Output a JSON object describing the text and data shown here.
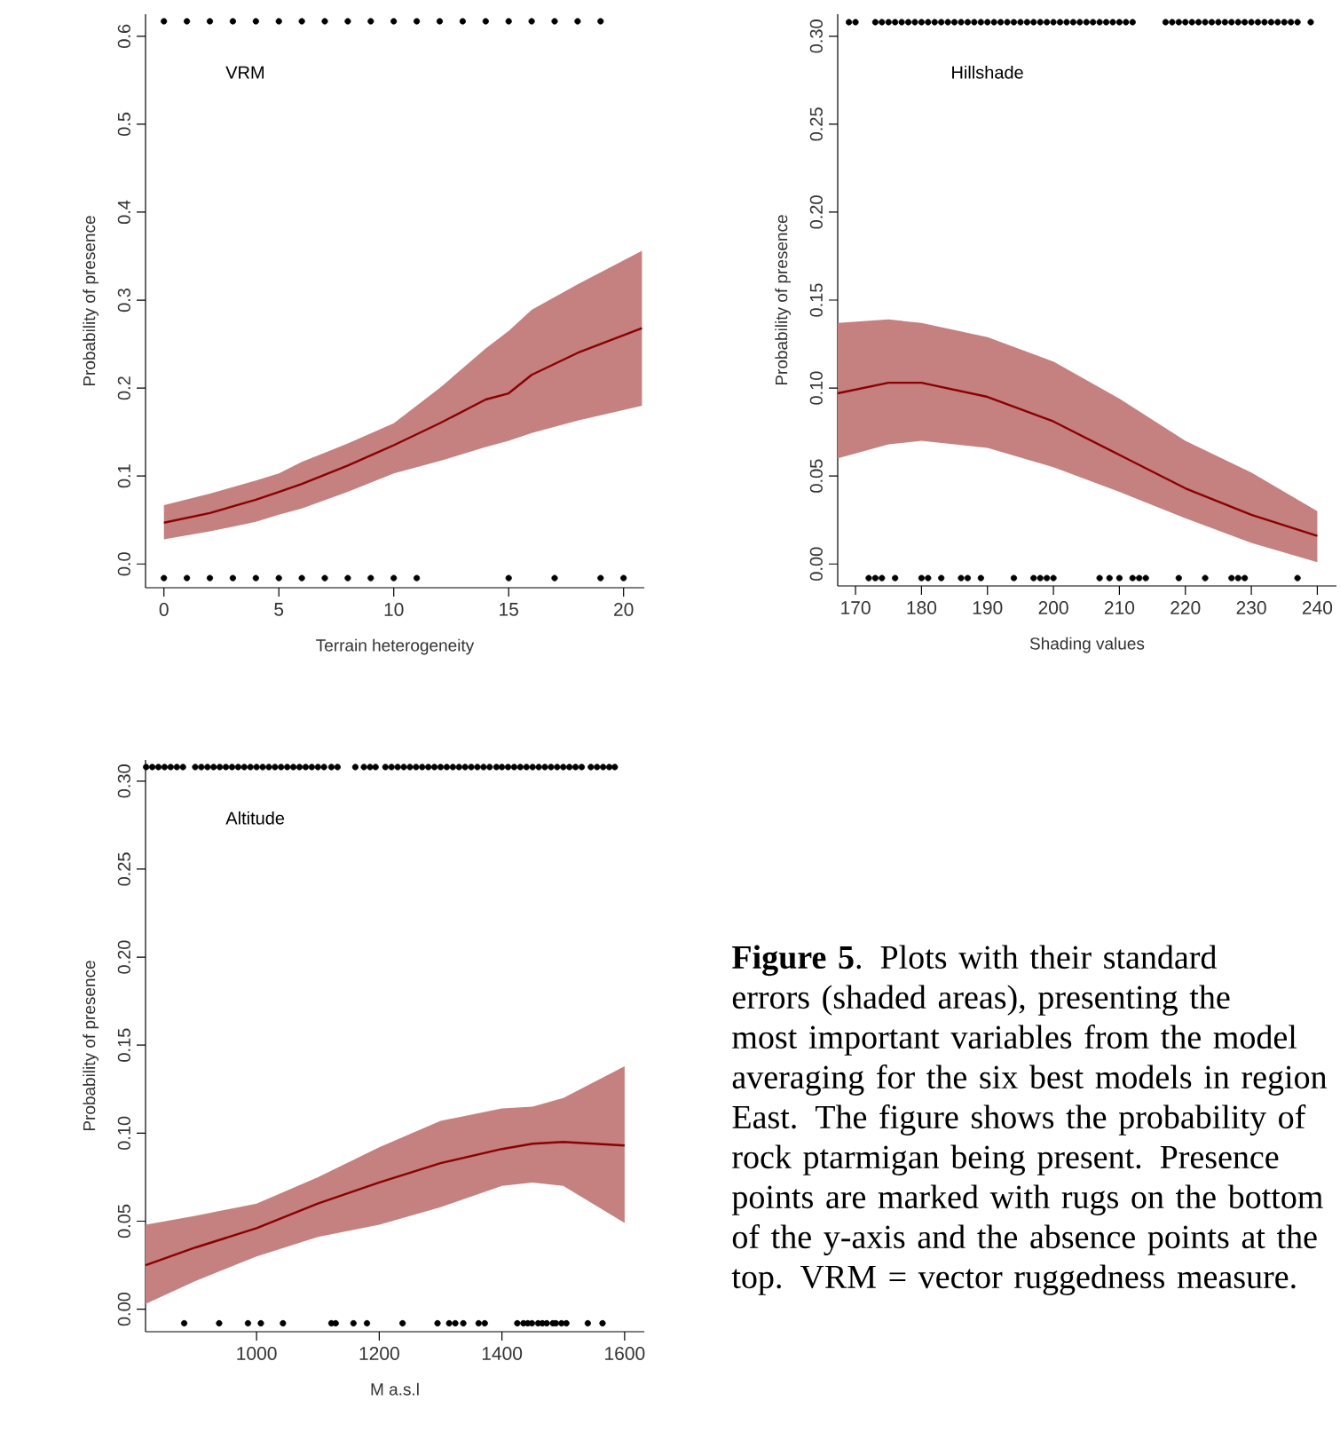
{
  "chart_data": [
    {
      "type": "line",
      "title": "VRM",
      "xlabel": "Terrain heterogeneity",
      "ylabel": "Probability of presence",
      "xlim": [
        -0.8,
        20.9
      ],
      "ylim": [
        -0.027,
        0.625
      ],
      "xticks": [
        0,
        5,
        10,
        15,
        20
      ],
      "yticks": [
        {
          "value": 0,
          "label": "0.0"
        },
        {
          "value": 0.1,
          "label": "0.1"
        },
        {
          "value": 0.2,
          "label": "0.2"
        },
        {
          "value": 0.3,
          "label": "0.3"
        },
        {
          "value": 0.4,
          "label": "0.4"
        },
        {
          "value": 0.5,
          "label": "0.5"
        },
        {
          "value": 0.6,
          "label": "0.6"
        }
      ],
      "series": [
        {
          "type": "line",
          "color": "#8b0000",
          "x": [
            0,
            2,
            4,
            5,
            6,
            8,
            10,
            12,
            14,
            15,
            16,
            18,
            20.8
          ],
          "values": [
            0.047,
            0.058,
            0.073,
            0.082,
            0.091,
            0.112,
            0.135,
            0.16,
            0.187,
            0.194,
            0.215,
            0.24,
            0.268
          ],
          "lower": [
            0.028,
            0.037,
            0.048,
            0.056,
            0.063,
            0.082,
            0.103,
            0.117,
            0.133,
            0.14,
            0.149,
            0.163,
            0.18
          ],
          "upper": [
            0.067,
            0.08,
            0.095,
            0.103,
            0.116,
            0.137,
            0.16,
            0.2,
            0.245,
            0.265,
            0.289,
            0.318,
            0.356
          ]
        },
        {
          "type": "scatter",
          "color": "#000000",
          "x": [
            0,
            1,
            2,
            3,
            4,
            5,
            6,
            7,
            8,
            9,
            10,
            11,
            12,
            13,
            14,
            15,
            16,
            17,
            18,
            19
          ],
          "values": [
            0.617,
            0.617,
            0.617,
            0.617,
            0.617,
            0.617,
            0.617,
            0.617,
            0.617,
            0.617,
            0.617,
            0.617,
            0.617,
            0.617,
            0.617,
            0.617,
            0.617,
            0.617,
            0.617,
            0.617
          ]
        },
        {
          "type": "scatter",
          "color": "#000000",
          "x": [
            0,
            1,
            2,
            3,
            4,
            5,
            6,
            7,
            8,
            9,
            10,
            11,
            15,
            17,
            19,
            20
          ],
          "values": [
            -0.016,
            -0.016,
            -0.016,
            -0.016,
            -0.016,
            -0.016,
            -0.016,
            -0.016,
            -0.016,
            -0.016,
            -0.016,
            -0.016,
            -0.016,
            -0.016,
            -0.016,
            -0.016
          ]
        }
      ]
    },
    {
      "type": "line",
      "title": "Hillshade",
      "xlabel": "Shading values",
      "ylabel": "Probability of presence",
      "xlim": [
        167.3,
        242.9
      ],
      "ylim": [
        -0.0125,
        0.3125
      ],
      "xticks": [
        170,
        180,
        190,
        200,
        210,
        220,
        230,
        240
      ],
      "yticks": [
        {
          "value": 0,
          "label": "0.00"
        },
        {
          "value": 0.05,
          "label": "0.05"
        },
        {
          "value": 0.1,
          "label": "0.10"
        },
        {
          "value": 0.15,
          "label": "0.15"
        },
        {
          "value": 0.2,
          "label": "0.20"
        },
        {
          "value": 0.25,
          "label": "0.25"
        },
        {
          "value": 0.3,
          "label": "0.30"
        }
      ],
      "series": [
        {
          "type": "line",
          "color": "#8b0000",
          "x": [
            167.3,
            175,
            180,
            190,
            200,
            210,
            220,
            230,
            240
          ],
          "values": [
            0.097,
            0.103,
            0.103,
            0.095,
            0.081,
            0.062,
            0.043,
            0.028,
            0.016
          ],
          "lower": [
            0.06,
            0.068,
            0.07,
            0.066,
            0.055,
            0.041,
            0.026,
            0.012,
            0.001
          ],
          "upper": [
            0.137,
            0.139,
            0.137,
            0.129,
            0.115,
            0.094,
            0.07,
            0.052,
            0.03
          ]
        },
        {
          "type": "scatter",
          "color": "#000000",
          "x": [
            169,
            170,
            173,
            174,
            175,
            176,
            177,
            178,
            179,
            180,
            181,
            182,
            183,
            184,
            185,
            186,
            187,
            188,
            189,
            190,
            191,
            192,
            193,
            194,
            195,
            196,
            197,
            198,
            199,
            200,
            201,
            202,
            203,
            204,
            205,
            206,
            207,
            208,
            209,
            210,
            211,
            212,
            217,
            218,
            219,
            220,
            221,
            222,
            223,
            224,
            225,
            226,
            227,
            228,
            229,
            230,
            231,
            232,
            233,
            234,
            235,
            236,
            237,
            239
          ],
          "values": [
            0.308,
            0.308,
            0.308,
            0.308,
            0.308,
            0.308,
            0.308,
            0.308,
            0.308,
            0.308,
            0.308,
            0.308,
            0.308,
            0.308,
            0.308,
            0.308,
            0.308,
            0.308,
            0.308,
            0.308,
            0.308,
            0.308,
            0.308,
            0.308,
            0.308,
            0.308,
            0.308,
            0.308,
            0.308,
            0.308,
            0.308,
            0.308,
            0.308,
            0.308,
            0.308,
            0.308,
            0.308,
            0.308,
            0.308,
            0.308,
            0.308,
            0.308,
            0.308,
            0.308,
            0.308,
            0.308,
            0.308,
            0.308,
            0.308,
            0.308,
            0.308,
            0.308,
            0.308,
            0.308,
            0.308,
            0.308,
            0.308,
            0.308,
            0.308,
            0.308,
            0.308,
            0.308,
            0.308,
            0.308
          ]
        },
        {
          "type": "scatter",
          "color": "#000000",
          "x": [
            172,
            173,
            174,
            176,
            180,
            181,
            183,
            186,
            187,
            189,
            194,
            197,
            198,
            199,
            200,
            207,
            208.5,
            210,
            212,
            213,
            214,
            219,
            223,
            227,
            228,
            229,
            237
          ],
          "values": [
            -0.008,
            -0.008,
            -0.008,
            -0.008,
            -0.008,
            -0.008,
            -0.008,
            -0.008,
            -0.008,
            -0.008,
            -0.008,
            -0.008,
            -0.008,
            -0.008,
            -0.008,
            -0.008,
            -0.008,
            -0.008,
            -0.008,
            -0.008,
            -0.008,
            -0.008,
            -0.008,
            -0.008,
            -0.008,
            -0.008,
            -0.008
          ]
        }
      ]
    },
    {
      "type": "line",
      "title": "Altitude",
      "xlabel": "M a.s.l",
      "ylabel": "Probability of presence",
      "xlim": [
        819,
        1632
      ],
      "ylim": [
        -0.0128,
        0.312
      ],
      "xticks": [
        1000,
        1200,
        1400,
        1600
      ],
      "yticks": [
        {
          "value": 0,
          "label": "0.00"
        },
        {
          "value": 0.05,
          "label": "0.05"
        },
        {
          "value": 0.1,
          "label": "0.10"
        },
        {
          "value": 0.15,
          "label": "0.15"
        },
        {
          "value": 0.2,
          "label": "0.20"
        },
        {
          "value": 0.25,
          "label": "0.25"
        },
        {
          "value": 0.3,
          "label": "0.30"
        }
      ],
      "series": [
        {
          "type": "line",
          "color": "#8b0000",
          "x": [
            819,
            900,
            1000,
            1100,
            1200,
            1300,
            1400,
            1450,
            1500,
            1600
          ],
          "values": [
            0.025,
            0.035,
            0.046,
            0.06,
            0.072,
            0.083,
            0.091,
            0.094,
            0.095,
            0.093
          ],
          "lower": [
            0.003,
            0.016,
            0.03,
            0.041,
            0.048,
            0.058,
            0.07,
            0.072,
            0.07,
            0.049
          ],
          "upper": [
            0.048,
            0.053,
            0.06,
            0.075,
            0.092,
            0.107,
            0.114,
            0.115,
            0.12,
            0.138
          ]
        },
        {
          "type": "scatter",
          "color": "#000000",
          "x": [
            820,
            830,
            840,
            850,
            860,
            870,
            880,
            900,
            910,
            920,
            930,
            940,
            950,
            960,
            970,
            980,
            990,
            1000,
            1010,
            1020,
            1030,
            1040,
            1050,
            1060,
            1070,
            1080,
            1090,
            1100,
            1110,
            1122,
            1132,
            1161,
            1175,
            1185,
            1194,
            1210,
            1220,
            1230,
            1240,
            1250,
            1260,
            1270,
            1280,
            1290,
            1300,
            1310,
            1320,
            1330,
            1340,
            1350,
            1360,
            1370,
            1380,
            1391,
            1400,
            1410,
            1420,
            1430,
            1440,
            1450,
            1460,
            1470,
            1480,
            1490,
            1500,
            1510,
            1520,
            1530,
            1545,
            1555,
            1565,
            1575,
            1584
          ],
          "values": [
            0.308,
            0.308,
            0.308,
            0.308,
            0.308,
            0.308,
            0.308,
            0.308,
            0.308,
            0.308,
            0.308,
            0.308,
            0.308,
            0.308,
            0.308,
            0.308,
            0.308,
            0.308,
            0.308,
            0.308,
            0.308,
            0.308,
            0.308,
            0.308,
            0.308,
            0.308,
            0.308,
            0.308,
            0.308,
            0.308,
            0.308,
            0.308,
            0.308,
            0.308,
            0.308,
            0.308,
            0.308,
            0.308,
            0.308,
            0.308,
            0.308,
            0.308,
            0.308,
            0.308,
            0.308,
            0.308,
            0.308,
            0.308,
            0.308,
            0.308,
            0.308,
            0.308,
            0.308,
            0.308,
            0.308,
            0.308,
            0.308,
            0.308,
            0.308,
            0.308,
            0.308,
            0.308,
            0.308,
            0.308,
            0.308,
            0.308,
            0.308,
            0.308,
            0.308,
            0.308,
            0.308,
            0.308,
            0.308
          ]
        },
        {
          "type": "scatter",
          "color": "#000000",
          "x": [
            882,
            939,
            986,
            1007,
            1043,
            1122,
            1129,
            1158,
            1180,
            1238,
            1295,
            1314,
            1324,
            1337,
            1362,
            1372,
            1425,
            1435,
            1442,
            1449,
            1459,
            1466,
            1473,
            1483,
            1488,
            1497,
            1505,
            1540,
            1564
          ],
          "values": [
            -0.008,
            -0.008,
            -0.008,
            -0.008,
            -0.008,
            -0.008,
            -0.008,
            -0.008,
            -0.008,
            -0.008,
            -0.008,
            -0.008,
            -0.008,
            -0.008,
            -0.008,
            -0.008,
            -0.008,
            -0.008,
            -0.008,
            -0.008,
            -0.008,
            -0.008,
            -0.008,
            -0.008,
            -0.008,
            -0.008,
            -0.008,
            -0.008,
            -0.008
          ]
        }
      ]
    },
    {
      "type": "other",
      "annotations": [
        "**Figure 5**. Plots with their standard errors (shaded areas), presenting the most important variables from the model averaging for the six best models in region East. The figure shows the probability of rock ptarmigan being present. Presence points are marked with rugs on the bottom of the y-axis and the absence points at the top. VRM = vector ruggedness measure."
      ]
    }
  ]
}
